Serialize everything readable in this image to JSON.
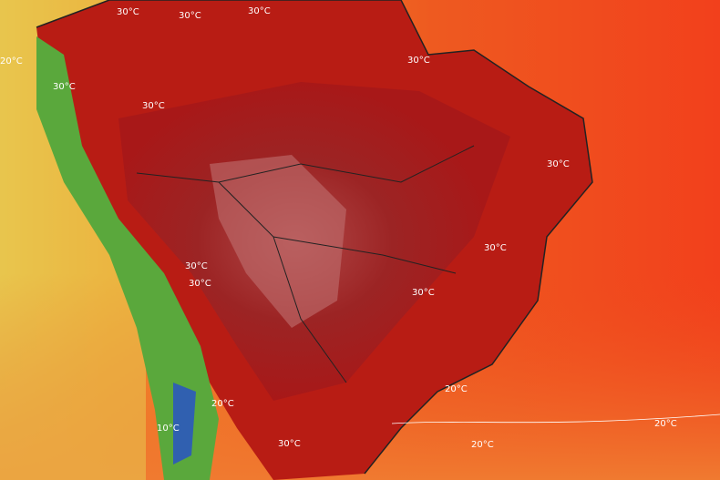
{
  "labels": [
    "30°C",
    "30°C",
    "30°C",
    "30°C",
    "30°C",
    "30°C",
    "30°C",
    "30°C",
    "30°C",
    "30°C",
    "30°C",
    "30°C",
    "20°C",
    "20°C",
    "20°C",
    "20°C",
    "20°C",
    "10°C"
  ]
}
